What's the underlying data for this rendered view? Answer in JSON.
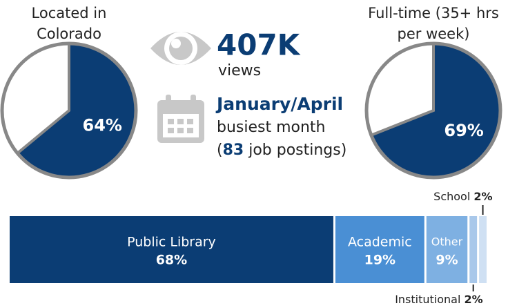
{
  "chart_data": [
    {
      "type": "pie",
      "title": [
        "Located in",
        "Colorado"
      ],
      "values": [
        64
      ],
      "value_labels": [
        "64%"
      ],
      "color": "#0b3d74"
    },
    {
      "type": "pie",
      "title": [
        "Full-time (35+ hrs",
        "per week)"
      ],
      "values": [
        69
      ],
      "value_labels": [
        "69%"
      ],
      "color": "#0b3d74"
    },
    {
      "type": "stacked_bar",
      "categories": [
        "Public Library",
        "Academic",
        "Other",
        "Institutional",
        "School"
      ],
      "values": [
        68,
        19,
        9,
        2,
        2
      ],
      "value_labels": [
        "68%",
        "19%",
        "9%",
        "2%",
        "2%"
      ],
      "colors": [
        "#0b3d74",
        "#4a8fd4",
        "#7eb0e2",
        "#a9c8ea",
        "#cfe0f3"
      ]
    }
  ],
  "stats": {
    "views": {
      "value": "407K",
      "label": "views"
    },
    "busiest": {
      "value": "January/April",
      "label": "busiest month",
      "open": "(",
      "count": 83,
      "rest": " job postings)"
    }
  }
}
